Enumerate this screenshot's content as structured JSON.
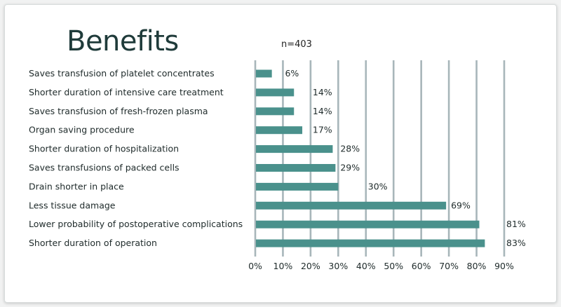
{
  "chart_data": {
    "type": "bar",
    "orientation": "horizontal",
    "title": "Benefits",
    "subtitle": "n=403",
    "categories": [
      "Saves transfusion of platelet concentrates",
      "Shorter duration of intensive care treatment",
      "Saves transfusion of fresh-frozen plasma",
      "Organ saving procedure",
      "Shorter duration of hospitalization",
      "Saves transfusions of packed cells",
      "Drain shorter in place",
      "Less tissue damage",
      "Lower probability of postoperative complications",
      "Shorter duration of operation"
    ],
    "values": [
      6,
      14,
      14,
      17,
      28,
      29,
      30,
      69,
      81,
      83
    ],
    "value_labels": [
      "6%",
      "14%",
      "14%",
      "17%",
      "28%",
      "29%",
      "30%",
      "69%",
      "81%",
      "83%"
    ],
    "xlim": [
      0,
      90
    ],
    "xticks": [
      "0%",
      "10%",
      "20%",
      "30%",
      "40%",
      "50%",
      "60%",
      "70%",
      "80%",
      "90%"
    ],
    "grid": true,
    "colors": {
      "bar": "#4a918c",
      "grid": "#a8b6ba",
      "title": "#1f3b3a"
    }
  }
}
